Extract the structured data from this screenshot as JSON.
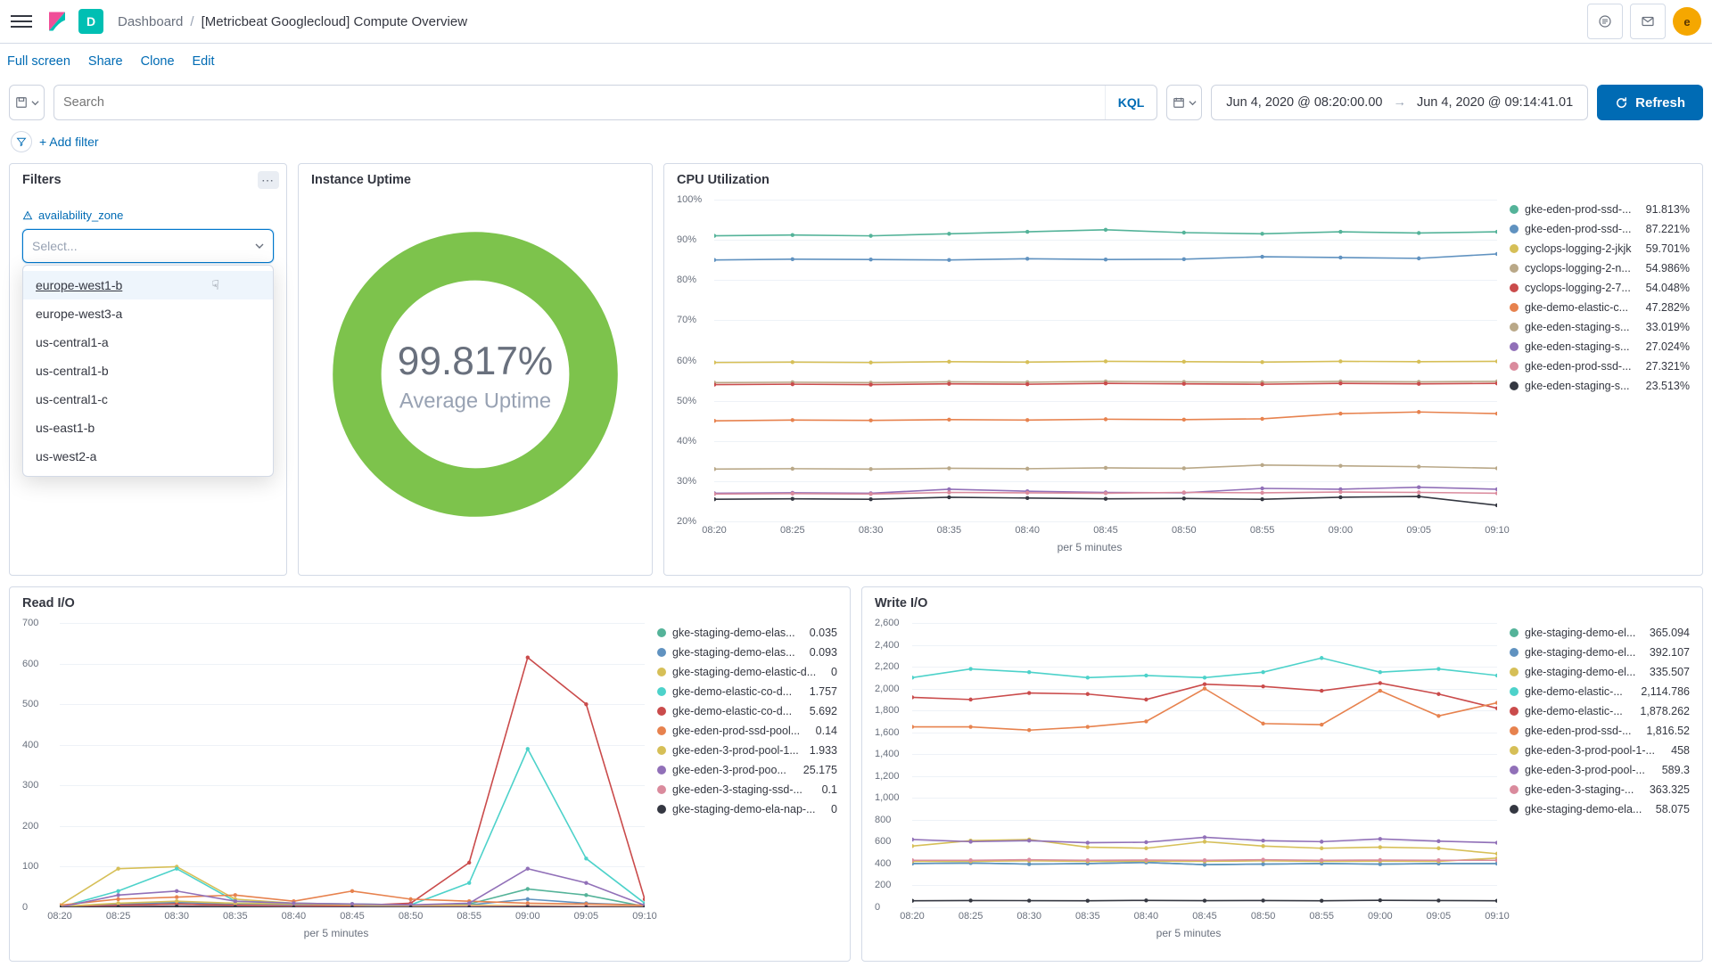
{
  "header": {
    "app_letter": "D",
    "app_badge_bg": "#00bfb3",
    "breadcrumb_root": "Dashboard",
    "breadcrumb_current": "[Metricbeat Googlecloud] Compute Overview",
    "avatar_letter": "e",
    "avatar_bg": "#f5a700"
  },
  "subheader": {
    "fullscreen": "Full screen",
    "share": "Share",
    "clone": "Clone",
    "edit": "Edit"
  },
  "query_bar": {
    "search_placeholder": "Search",
    "kql": "KQL",
    "date_from": "Jun 4, 2020 @ 08:20:00.00",
    "date_to": "Jun 4, 2020 @ 09:14:41.01",
    "refresh": "Refresh"
  },
  "filter_bar": {
    "add_filter": "+ Add filter"
  },
  "panels": {
    "filters": {
      "title": "Filters",
      "field_label": "availability_zone",
      "select_placeholder": "Select...",
      "options": [
        "europe-west1-b",
        "europe-west3-a",
        "us-central1-a",
        "us-central1-b",
        "us-central1-c",
        "us-east1-b",
        "us-west2-a"
      ]
    },
    "uptime": {
      "title": "Instance Uptime",
      "value": "99.817%",
      "label": "Average Uptime",
      "ring_color": "#54b399",
      "ring_color_actual": "#7dc34c"
    },
    "cpu": {
      "title": "CPU Utilization",
      "x_axis_label": "per 5 minutes",
      "x_ticks": [
        "08:20",
        "08:25",
        "08:30",
        "08:35",
        "08:40",
        "08:45",
        "08:50",
        "08:55",
        "09:00",
        "09:05",
        "09:10"
      ],
      "y_ticks": [
        "20%",
        "30%",
        "40%",
        "50%",
        "60%",
        "70%",
        "80%",
        "90%",
        "100%"
      ],
      "series": [
        {
          "color": "#54b399",
          "label": "gke-eden-prod-ssd-...",
          "value": "91.813%",
          "data": [
            91,
            91.2,
            91,
            91.5,
            92,
            92.5,
            91.8,
            91.5,
            92,
            91.7,
            92
          ]
        },
        {
          "color": "#6092c0",
          "label": "gke-eden-prod-ssd-...",
          "value": "87.221%",
          "data": [
            85,
            85.2,
            85.1,
            85,
            85.3,
            85.1,
            85.2,
            85.8,
            85.6,
            85.4,
            86.5
          ]
        },
        {
          "color": "#d6bf57",
          "label": "cyclops-logging-2-jkjk",
          "value": "59.701%",
          "data": [
            59.5,
            59.6,
            59.5,
            59.7,
            59.6,
            59.8,
            59.7,
            59.6,
            59.8,
            59.7,
            59.8
          ]
        },
        {
          "color": "#b9a888",
          "label": "cyclops-logging-2-n...",
          "value": "54.986%",
          "data": [
            54.5,
            54.6,
            54.5,
            54.7,
            54.6,
            54.8,
            54.7,
            54.6,
            54.8,
            54.7,
            54.8
          ]
        },
        {
          "color": "#ca4b4b",
          "label": "cyclops-logging-2-7...",
          "value": "54.048%",
          "data": [
            54,
            54.1,
            54,
            54.2,
            54.1,
            54.3,
            54.2,
            54.1,
            54.3,
            54.2,
            54.3
          ]
        },
        {
          "color": "#e7824e",
          "label": "gke-demo-elastic-c...",
          "value": "47.282%",
          "data": [
            45,
            45.2,
            45.1,
            45.3,
            45.2,
            45.4,
            45.3,
            45.5,
            46.8,
            47.2,
            46.8
          ]
        },
        {
          "color": "#b9a888",
          "label": "gke-eden-staging-s...",
          "value": "33.019%",
          "data": [
            33,
            33.1,
            33,
            33.2,
            33.1,
            33.3,
            33.2,
            34,
            33.8,
            33.6,
            33.2
          ]
        },
        {
          "color": "#9170b8",
          "label": "gke-eden-staging-s...",
          "value": "27.024%",
          "data": [
            27,
            27.1,
            27,
            28,
            27.5,
            27.2,
            27.1,
            28.2,
            28,
            28.5,
            28
          ]
        },
        {
          "color": "#da8b9d",
          "label": "gke-eden-prod-ssd-...",
          "value": "27.321%",
          "data": [
            26.8,
            26.9,
            26.8,
            27.2,
            27.1,
            27,
            27.2,
            27.1,
            27.3,
            27.2,
            27
          ]
        },
        {
          "color": "#343741",
          "label": "gke-eden-staging-s...",
          "value": "23.513%",
          "data": [
            25.5,
            25.6,
            25.5,
            26,
            25.8,
            25.6,
            25.7,
            25.5,
            26,
            26.2,
            24
          ]
        }
      ]
    },
    "read_io": {
      "title": "Read I/O",
      "x_axis_label": "per 5 minutes",
      "x_ticks": [
        "08:20",
        "08:25",
        "08:30",
        "08:35",
        "08:40",
        "08:45",
        "08:50",
        "08:55",
        "09:00",
        "09:05",
        "09:10"
      ],
      "y_ticks": [
        "0",
        "100",
        "200",
        "300",
        "400",
        "500",
        "600",
        "700"
      ],
      "series": [
        {
          "color": "#54b399",
          "label": "gke-staging-demo-elas...",
          "value": "0.035",
          "data": [
            0,
            5,
            8,
            5,
            3,
            2,
            4,
            8,
            45,
            30,
            2
          ]
        },
        {
          "color": "#6092c0",
          "label": "gke-staging-demo-elas...",
          "value": "0.093",
          "data": [
            2,
            8,
            12,
            8,
            5,
            4,
            3,
            6,
            20,
            10,
            5
          ]
        },
        {
          "color": "#d6bf57",
          "label": "gke-staging-demo-elastic-d...",
          "value": "0",
          "data": [
            5,
            95,
            100,
            20,
            10,
            8,
            6,
            5,
            4,
            3,
            2
          ]
        },
        {
          "color": "#4dd2ca",
          "label": "gke-demo-elastic-co-d...",
          "value": "1.757",
          "data": [
            0,
            40,
            95,
            15,
            10,
            8,
            6,
            60,
            390,
            120,
            10
          ]
        },
        {
          "color": "#ca4b4b",
          "label": "gke-demo-elastic-co-d...",
          "value": "5.692",
          "data": [
            0,
            5,
            8,
            5,
            3,
            4,
            10,
            110,
            615,
            500,
            20
          ]
        },
        {
          "color": "#e7824e",
          "label": "gke-eden-prod-ssd-pool...",
          "value": "0.14",
          "data": [
            5,
            20,
            25,
            30,
            15,
            40,
            20,
            15,
            10,
            8,
            5
          ]
        },
        {
          "color": "#d6bf57",
          "label": "gke-eden-3-prod-pool-1...",
          "value": "1.933",
          "data": [
            2,
            10,
            15,
            10,
            8,
            6,
            4,
            3,
            2,
            1,
            0
          ]
        },
        {
          "color": "#9170b8",
          "label": "gke-eden-3-prod-poo...",
          "value": "25.175",
          "data": [
            0,
            30,
            40,
            15,
            10,
            8,
            6,
            10,
            95,
            60,
            5
          ]
        },
        {
          "color": "#da8b9d",
          "label": "gke-eden-3-staging-ssd-...",
          "value": "0.1",
          "data": [
            0,
            2,
            3,
            2,
            1,
            1,
            1,
            2,
            3,
            2,
            1
          ]
        },
        {
          "color": "#343741",
          "label": "gke-staging-demo-ela-nap-...",
          "value": "0",
          "data": [
            0,
            1,
            2,
            1,
            0,
            0,
            0,
            0,
            1,
            0,
            0
          ]
        }
      ]
    },
    "write_io": {
      "title": "Write I/O",
      "x_axis_label": "per 5 minutes",
      "x_ticks": [
        "08:20",
        "08:25",
        "08:30",
        "08:35",
        "08:40",
        "08:45",
        "08:50",
        "08:55",
        "09:00",
        "09:05",
        "09:10"
      ],
      "y_ticks": [
        "0",
        "200",
        "400",
        "600",
        "800",
        "1,000",
        "1,200",
        "1,400",
        "1,600",
        "1,800",
        "2,000",
        "2,200",
        "2,400",
        "2,600"
      ],
      "series": [
        {
          "color": "#54b399",
          "label": "gke-staging-demo-el...",
          "value": "365.094",
          "data": [
            400,
            405,
            395,
            400,
            410,
            390,
            395,
            400,
            395,
            400,
            400
          ]
        },
        {
          "color": "#6092c0",
          "label": "gke-staging-demo-el...",
          "value": "392.107",
          "data": [
            400,
            405,
            395,
            400,
            410,
            390,
            395,
            400,
            395,
            400,
            400
          ]
        },
        {
          "color": "#d6bf57",
          "label": "gke-staging-demo-el...",
          "value": "335.507",
          "data": [
            560,
            610,
            620,
            550,
            540,
            600,
            560,
            540,
            550,
            540,
            490
          ]
        },
        {
          "color": "#4dd2ca",
          "label": "gke-demo-elastic-...",
          "value": "2,114.786",
          "data": [
            2100,
            2180,
            2150,
            2100,
            2120,
            2100,
            2150,
            2280,
            2150,
            2180,
            2120
          ]
        },
        {
          "color": "#ca4b4b",
          "label": "gke-demo-elastic-...",
          "value": "1,878.262",
          "data": [
            1920,
            1900,
            1960,
            1950,
            1900,
            2040,
            2020,
            1980,
            2050,
            1950,
            1820
          ]
        },
        {
          "color": "#e7824e",
          "label": "gke-eden-prod-ssd-...",
          "value": "1,816.52",
          "data": [
            1650,
            1650,
            1620,
            1650,
            1700,
            2000,
            1680,
            1670,
            1980,
            1750,
            1870
          ]
        },
        {
          "color": "#d6bf57",
          "label": "gke-eden-3-prod-pool-1-...",
          "value": "458",
          "data": [
            420,
            420,
            425,
            420,
            422,
            420,
            425,
            420,
            422,
            420,
            450
          ]
        },
        {
          "color": "#9170b8",
          "label": "gke-eden-3-prod-pool-...",
          "value": "589.3",
          "data": [
            620,
            600,
            610,
            590,
            595,
            640,
            610,
            600,
            625,
            605,
            590
          ]
        },
        {
          "color": "#da8b9d",
          "label": "gke-eden-3-staging-...",
          "value": "363.325",
          "data": [
            430,
            430,
            435,
            430,
            432,
            430,
            435,
            430,
            432,
            430,
            430
          ]
        },
        {
          "color": "#343741",
          "label": "gke-staging-demo-ela...",
          "value": "58.075",
          "data": [
            60,
            62,
            61,
            60,
            63,
            61,
            62,
            60,
            64,
            62,
            60
          ]
        }
      ]
    }
  }
}
